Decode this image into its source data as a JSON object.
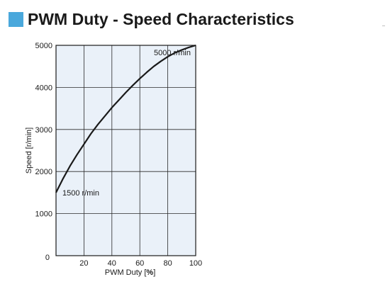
{
  "page": {
    "title": "PWM Duty - Speed Characteristics",
    "title_icon": "square-icon",
    "accent_color": "#4aa8dc"
  },
  "chart_data": {
    "type": "line",
    "title": "PWM Duty - Speed Characteristics",
    "xlabel": "PWM Duty",
    "xunit": "%",
    "ylabel": "Speed [r/min]",
    "xlim": [
      0,
      100
    ],
    "ylim": [
      0,
      5000
    ],
    "x_ticks": [
      "20",
      "40",
      "60",
      "80",
      "100"
    ],
    "y_ticks": [
      "0",
      "1000",
      "2000",
      "3000",
      "4000",
      "5000"
    ],
    "grid": true,
    "plot_background": "#eaf1f9",
    "line_color": "#1a1a1a",
    "series": [
      {
        "x": [
          0,
          5,
          10,
          15,
          20,
          25,
          30,
          35,
          40,
          45,
          50,
          55,
          60,
          65,
          70,
          75,
          80,
          85,
          90,
          95,
          100
        ],
        "y": [
          1500,
          1830,
          2130,
          2400,
          2650,
          2900,
          3120,
          3320,
          3520,
          3700,
          3880,
          4050,
          4210,
          4360,
          4500,
          4620,
          4730,
          4820,
          4890,
          4950,
          5000
        ]
      }
    ],
    "annotations": [
      {
        "text": "5000 r/min",
        "x": 100,
        "y": 5000
      },
      {
        "text": "1500 r/min",
        "x": 0,
        "y": 1500
      }
    ]
  }
}
